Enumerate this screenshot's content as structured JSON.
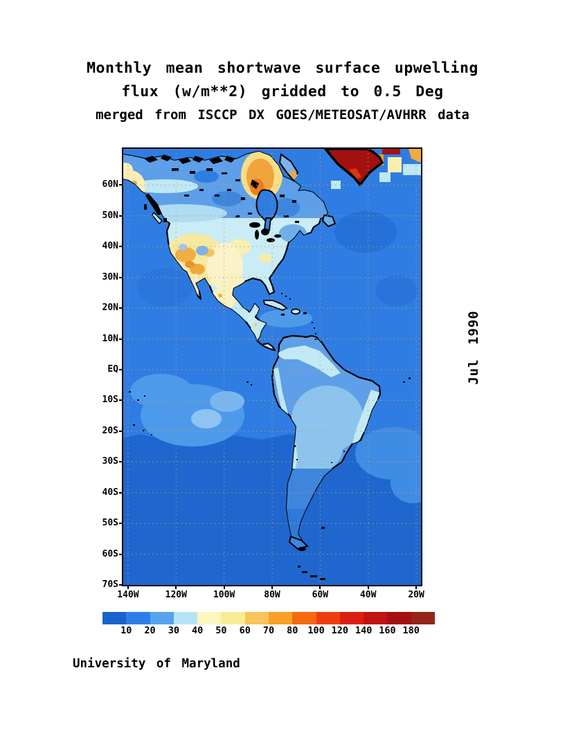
{
  "titles": {
    "line1": "Monthly mean shortwave surface upwelling",
    "line2": "flux (w/m**2) gridded to 0.5 Deg",
    "line3": "merged from ISCCP DX GOES/METEOSAT/AVHRR data"
  },
  "date_label": "Jul 1990",
  "credit": "University of Maryland",
  "map": {
    "lat_ticks": [
      {
        "label": "60N",
        "lat": 60
      },
      {
        "label": "50N",
        "lat": 50
      },
      {
        "label": "40N",
        "lat": 40
      },
      {
        "label": "30N",
        "lat": 30
      },
      {
        "label": "20N",
        "lat": 20
      },
      {
        "label": "10N",
        "lat": 10
      },
      {
        "label": "EQ",
        "lat": 0
      },
      {
        "label": "10S",
        "lat": -10
      },
      {
        "label": "20S",
        "lat": -20
      },
      {
        "label": "30S",
        "lat": -30
      },
      {
        "label": "40S",
        "lat": -40
      },
      {
        "label": "50S",
        "lat": -50
      },
      {
        "label": "60S",
        "lat": -60
      },
      {
        "label": "70S",
        "lat": -70
      }
    ],
    "lon_ticks": [
      {
        "label": "140W",
        "lon": -140
      },
      {
        "label": "120W",
        "lon": -120
      },
      {
        "label": "100W",
        "lon": -100
      },
      {
        "label": "80W",
        "lon": -80
      },
      {
        "label": "60W",
        "lon": -60
      },
      {
        "label": "40W",
        "lon": -40
      },
      {
        "label": "20W",
        "lon": -20
      }
    ]
  },
  "colorbar": {
    "boundary_labels": [
      "10",
      "20",
      "30",
      "40",
      "50",
      "60",
      "70",
      "80",
      "100",
      "120",
      "140",
      "160",
      "180"
    ],
    "colors": [
      "#1A63CE",
      "#2E7EEA",
      "#57A3EE",
      "#B6E4F6",
      "#FAF6BE",
      "#F9EC96",
      "#F9C45C",
      "#FBA026",
      "#F6690F",
      "#EE3D10",
      "#DC2010",
      "#C11312",
      "#A31010",
      "#942518"
    ]
  },
  "chart_data": {
    "type": "heatmap",
    "title": "Monthly mean shortwave surface upwelling flux (w/m**2) gridded to 0.5 Deg",
    "subtitle": "merged from ISCCP DX GOES/METEOSAT/AVHRR data",
    "period": "Jul 1990",
    "xlabel_ticks": [
      "140W",
      "120W",
      "100W",
      "80W",
      "60W",
      "40W",
      "20W"
    ],
    "ylabel_ticks": [
      "60N",
      "50N",
      "40N",
      "30N",
      "20N",
      "10N",
      "EQ",
      "10S",
      "20S",
      "30S",
      "40S",
      "50S",
      "60S",
      "70S"
    ],
    "scale_boundaries": [
      10,
      20,
      30,
      40,
      50,
      60,
      70,
      80,
      100,
      120,
      140,
      160,
      180
    ],
    "scale_colors": [
      "#1A63CE",
      "#2E7EEA",
      "#57A3EE",
      "#B6E4F6",
      "#FAF6BE",
      "#F9EC96",
      "#F9C45C",
      "#FBA026",
      "#F6690F",
      "#EE3D10",
      "#DC2010",
      "#C11312",
      "#A31010",
      "#942518"
    ],
    "legend_position": "bottom",
    "grid": "dotted"
  }
}
